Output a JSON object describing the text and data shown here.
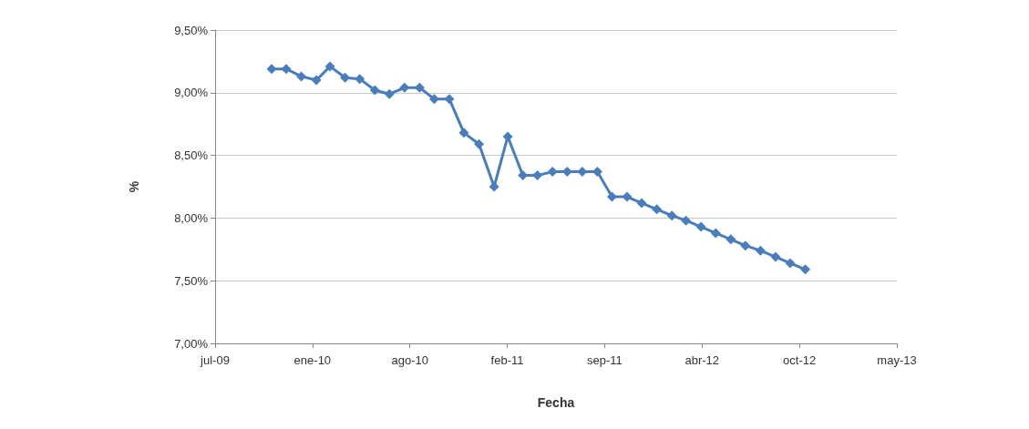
{
  "chart_data": {
    "type": "line",
    "xlabel": "Fecha",
    "ylabel": "%",
    "x": [
      "2009-10-31",
      "2009-11-30",
      "2009-12-31",
      "2010-01-31",
      "2010-02-28",
      "2010-03-31",
      "2010-04-30",
      "2010-05-31",
      "2010-06-30",
      "2010-07-31",
      "2010-08-31",
      "2010-09-30",
      "2010-10-31",
      "2010-11-30",
      "2010-12-31",
      "2011-01-31",
      "2011-02-28",
      "2011-03-31",
      "2011-04-30",
      "2011-05-31",
      "2011-06-30",
      "2011-07-31",
      "2011-08-31",
      "2011-09-30",
      "2011-10-31",
      "2011-11-30",
      "2011-12-31",
      "2012-01-31",
      "2012-02-29",
      "2012-03-31",
      "2012-04-30",
      "2012-05-31",
      "2012-06-30",
      "2012-07-31",
      "2012-08-31",
      "2012-09-30",
      "2012-10-31"
    ],
    "series": [
      {
        "color": "#4a7ebb",
        "values": [
          9.19,
          9.19,
          9.13,
          9.1,
          9.21,
          9.12,
          9.11,
          9.02,
          8.99,
          9.04,
          9.04,
          8.95,
          8.95,
          8.68,
          8.59,
          8.25,
          8.65,
          8.34,
          8.34,
          8.37,
          8.37,
          8.37,
          8.37,
          8.17,
          8.17,
          8.12,
          8.07,
          8.02,
          7.98,
          7.93,
          7.88,
          7.83,
          7.78,
          7.74,
          7.69,
          7.64,
          7.59
        ]
      }
    ],
    "xlim": [
      "2009-07-07",
      "2013-05-07"
    ],
    "xticks": [
      {
        "value": "2009-07-07",
        "label": "jul-09"
      },
      {
        "value": "2010-01-23",
        "label": "ene-10"
      },
      {
        "value": "2010-08-11",
        "label": "ago-10"
      },
      {
        "value": "2011-02-27",
        "label": "feb-11"
      },
      {
        "value": "2011-09-15",
        "label": "sep-11"
      },
      {
        "value": "2012-04-02",
        "label": "abr-12"
      },
      {
        "value": "2012-10-19",
        "label": "oct-12"
      },
      {
        "value": "2013-05-07",
        "label": "may-13"
      }
    ],
    "ylim": [
      7,
      9.5
    ],
    "yticks": [
      {
        "value": 7,
        "label": "7,00%"
      },
      {
        "value": 7.5,
        "label": "7,50%"
      },
      {
        "value": 8,
        "label": "8,00%"
      },
      {
        "value": 8.5,
        "label": "8,50%"
      },
      {
        "value": 9,
        "label": "9,00%"
      },
      {
        "value": 9.5,
        "label": "9,50%"
      }
    ],
    "grid": "y",
    "marker": "diamond",
    "line_style": "solid"
  }
}
